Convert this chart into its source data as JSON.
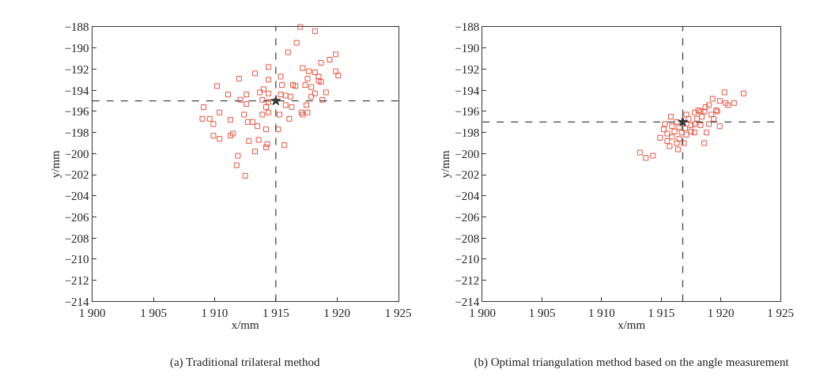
{
  "chart_data": [
    {
      "type": "scatter",
      "title": "(a) Traditional trilateral method",
      "xlabel": "x/mm",
      "ylabel": "y/mm",
      "xlim": [
        1900,
        1925
      ],
      "ylim": [
        -214,
        -188
      ],
      "xticks": [
        {
          "value": 1900,
          "label": "1 900"
        },
        {
          "value": 1905,
          "label": "1 905"
        },
        {
          "value": 1910,
          "label": "1 910"
        },
        {
          "value": 1915,
          "label": "1 915"
        },
        {
          "value": 1920,
          "label": "1 920"
        },
        {
          "value": 1925,
          "label": "1 925"
        }
      ],
      "yticks": [
        -214,
        -212,
        -210,
        -208,
        -206,
        -204,
        -202,
        -200,
        -198,
        -196,
        -194,
        -192,
        -190,
        -188
      ],
      "ref_lines": [
        {
          "axis": "x",
          "value": 1915,
          "color": "#444444",
          "line_style": "dashed"
        },
        {
          "axis": "y",
          "value": -195,
          "color": "#444444",
          "line_style": "dashed"
        }
      ],
      "series": [
        {
          "color": "#e8533f",
          "marker": "square",
          "x": [
            1917.0,
            1918.2,
            1916.7,
            1916.0,
            1919.9,
            1919.4,
            1918.7,
            1919.9,
            1920.1,
            1917.2,
            1917.7,
            1918.2,
            1918.5,
            1917.6,
            1918.5,
            1918.7,
            1917.4,
            1917.9,
            1918.2,
            1919.1,
            1918.8,
            1917.9,
            1917.5,
            1917.1,
            1917.6,
            1917.2,
            1914.4,
            1913.3,
            1912.0,
            1914.4,
            1915.4,
            1910.2,
            1915.5,
            1916.4,
            1916.6,
            1914.0,
            1913.7,
            1914.4,
            1911.1,
            1912.6,
            1915.4,
            1915.8,
            1916.2,
            1913.9,
            1914.4,
            1912.1,
            1915.8,
            1916.3,
            1914.2,
            1912.6,
            1909.1,
            1910.4,
            1912.4,
            1913.9,
            1914.4,
            1909.0,
            1909.6,
            1909.9,
            1911.3,
            1912.7,
            1913.1,
            1913.5,
            1915.3,
            1916.1,
            1914.2,
            1915.2,
            1909.9,
            1910.4,
            1911.3,
            1911.5,
            1912.8,
            1913.6,
            1913.3,
            1914.2,
            1914.3,
            1915.7,
            1911.9,
            1911.8,
            1912.5
          ],
          "values": [
            -188.0,
            -188.4,
            -189.5,
            -190.4,
            -190.6,
            -191.1,
            -191.4,
            -192.2,
            -192.6,
            -191.9,
            -192.2,
            -192.3,
            -192.7,
            -192.9,
            -193.1,
            -193.2,
            -193.5,
            -193.7,
            -194.3,
            -194.2,
            -194.9,
            -194.6,
            -195.4,
            -196.1,
            -196.1,
            -196.3,
            -191.8,
            -192.4,
            -192.9,
            -193.0,
            -192.7,
            -193.6,
            -193.5,
            -193.5,
            -193.6,
            -193.9,
            -194.2,
            -194.3,
            -194.4,
            -194.4,
            -194.4,
            -194.5,
            -194.6,
            -194.9,
            -195.1,
            -194.9,
            -195.4,
            -195.6,
            -195.6,
            -195.3,
            -195.6,
            -196.1,
            -196.3,
            -196.3,
            -196.1,
            -196.7,
            -196.7,
            -197.2,
            -196.8,
            -197.0,
            -197.0,
            -197.4,
            -196.3,
            -196.7,
            -197.7,
            -197.7,
            -198.3,
            -198.6,
            -198.3,
            -198.1,
            -198.8,
            -198.7,
            -199.8,
            -199.4,
            -199.1,
            -199.2,
            -200.2,
            -201.1,
            -202.1
          ]
        },
        {
          "color": "#333333",
          "marker": "star",
          "x": [
            1915.0
          ],
          "values": [
            -195.0
          ]
        }
      ]
    },
    {
      "type": "scatter",
      "title": "(b) Optimal triangulation method based on the angle measurement",
      "xlabel": "x/mm",
      "ylabel": "y/mm",
      "xlim": [
        1900,
        1925
      ],
      "ylim": [
        -214,
        -188
      ],
      "xticks": [
        {
          "value": 1900,
          "label": "1 900"
        },
        {
          "value": 1905,
          "label": "1 905"
        },
        {
          "value": 1910,
          "label": "1 910"
        },
        {
          "value": 1915,
          "label": "1 915"
        },
        {
          "value": 1920,
          "label": "1 920"
        },
        {
          "value": 1925,
          "label": "1 925"
        }
      ],
      "yticks": [
        -214,
        -212,
        -210,
        -208,
        -206,
        -204,
        -202,
        -200,
        -198,
        -196,
        -194,
        -192,
        -190,
        -188
      ],
      "ref_lines": [
        {
          "axis": "x",
          "value": 1916.8,
          "color": "#444444",
          "line_style": "dashed"
        },
        {
          "axis": "y",
          "value": -197,
          "color": "#444444",
          "line_style": "dashed"
        }
      ],
      "series": [
        {
          "color": "#e8533f",
          "marker": "square",
          "x": [
            1921.9,
            1920.3,
            1920.4,
            1921.1,
            1920.6,
            1919.3,
            1919.9,
            1919.0,
            1918.7,
            1919.6,
            1918.3,
            1917.8,
            1919.2,
            1918.4,
            1919.4,
            1918.0,
            1919.9,
            1919.0,
            1918.3,
            1917.8,
            1915.8,
            1915.3,
            1915.9,
            1916.5,
            1916.1,
            1916.7,
            1917.5,
            1917.8,
            1918.8,
            1915.5,
            1917.1,
            1915.9,
            1916.5,
            1915.5,
            1916.3,
            1916.9,
            1915.7,
            1916.4,
            1918.6,
            1913.2,
            1913.7,
            1914.3,
            1917.5,
            1917.3,
            1917.1,
            1918.6,
            1917.0,
            1916.3,
            1918.1,
            1919.7,
            1914.9,
            1915.2
          ],
          "values": [
            -194.3,
            -194.2,
            -195.2,
            -195.2,
            -195.4,
            -194.8,
            -195.0,
            -195.4,
            -195.6,
            -195.9,
            -196.0,
            -196.1,
            -196.3,
            -196.5,
            -196.7,
            -196.7,
            -197.4,
            -197.2,
            -197.3,
            -197.2,
            -196.5,
            -197.2,
            -197.4,
            -197.5,
            -197.9,
            -198.0,
            -197.9,
            -198.0,
            -198.0,
            -198.1,
            -198.2,
            -198.4,
            -198.6,
            -198.8,
            -199.0,
            -199.0,
            -199.3,
            -199.6,
            -199.0,
            -199.9,
            -200.4,
            -200.2,
            -197.3,
            -196.7,
            -196.3,
            -196.0,
            -197.6,
            -197.0,
            -195.9,
            -196.0,
            -198.5,
            -197.7
          ]
        },
        {
          "color": "#333333",
          "marker": "star",
          "x": [
            1916.8
          ],
          "values": [
            -197.0
          ]
        }
      ]
    }
  ]
}
